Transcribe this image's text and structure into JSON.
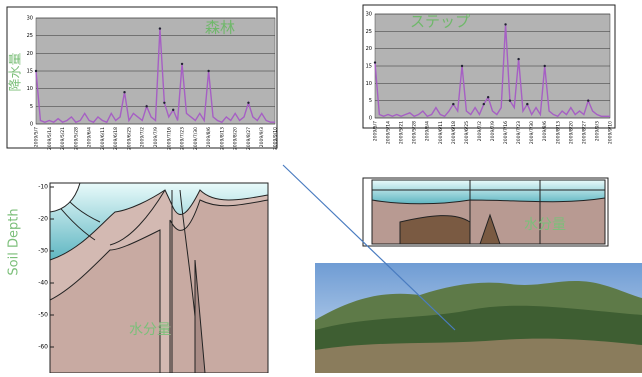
{
  "charts": {
    "precip_label": "降水量",
    "chart_data": [
      {
        "type": "line",
        "title": "森林",
        "color": "#a65fc4",
        "categories": [
          "2009/5/7",
          null,
          null,
          "2009/5/14",
          null,
          null,
          "2009/5/21",
          null,
          null,
          "2009/5/28",
          null,
          null,
          "2009/6/4",
          null,
          null,
          "2009/6/11",
          null,
          null,
          "2009/6/18",
          null,
          null,
          "2009/6/25",
          null,
          null,
          "2009/7/2",
          null,
          null,
          "2009/7/9",
          null,
          null,
          "2009/7/16",
          null,
          null,
          "2009/7/23",
          null,
          null,
          "2009/7/30",
          null,
          null,
          "2009/8/6",
          null,
          null,
          "2009/8/13",
          null,
          null,
          "2009/8/20",
          null,
          null,
          "2009/8/27",
          null,
          null,
          "2009/9/3",
          null,
          null,
          "2009/9/10"
        ],
        "values": [
          15,
          1,
          0.5,
          1,
          0.5,
          1.5,
          0.5,
          1,
          2,
          0.5,
          1,
          3,
          1,
          0.5,
          2,
          1,
          0.5,
          3,
          1,
          2,
          9,
          1,
          3,
          2,
          1,
          5,
          2,
          1,
          27,
          6,
          2,
          4,
          1,
          17,
          3,
          2,
          1,
          3,
          1,
          15,
          2,
          1,
          0.5,
          2,
          1,
          3,
          1,
          2,
          6,
          2,
          1,
          3,
          1,
          0.5,
          0.5
        ],
        "ylim": [
          0,
          30
        ],
        "yticks": [
          0,
          5,
          10,
          15,
          20,
          25,
          30
        ],
        "grid": true
      },
      {
        "type": "line",
        "title": "ステップ",
        "color": "#a65fc4",
        "categories": [
          "2009/5/7",
          null,
          null,
          "2009/5/14",
          null,
          null,
          "2009/5/21",
          null,
          null,
          "2009/5/28",
          null,
          null,
          "2009/6/4",
          null,
          null,
          "2009/6/11",
          null,
          null,
          "2009/6/18",
          null,
          null,
          "2009/6/25",
          null,
          null,
          "2009/7/2",
          null,
          null,
          "2009/7/9",
          null,
          null,
          "2009/7/16",
          null,
          null,
          "2009/7/23",
          null,
          null,
          "2009/7/30",
          null,
          null,
          "2009/8/6",
          null,
          null,
          "2009/8/13",
          null,
          null,
          "2009/8/20",
          null,
          null,
          "2009/8/27",
          null,
          null,
          "2009/9/3",
          null,
          null,
          "2009/9/10"
        ],
        "values": [
          16,
          1,
          0.5,
          1,
          0.5,
          1,
          0.5,
          1,
          1.5,
          0.5,
          1,
          2,
          0.5,
          1,
          3,
          1,
          0.5,
          2,
          4,
          2,
          15,
          2,
          1,
          3,
          1,
          4,
          6,
          2,
          1,
          3,
          27,
          5,
          3,
          17,
          2,
          4,
          1,
          3,
          1,
          15,
          2,
          1,
          0.5,
          2,
          1,
          3,
          1,
          2,
          1,
          5,
          2,
          1,
          0.5,
          0.5,
          0.5
        ],
        "ylim": [
          0,
          30
        ],
        "yticks": [
          0,
          5,
          10,
          15,
          20,
          25,
          30
        ],
        "grid": true
      }
    ],
    "soil_label": "Soil Depth",
    "soil_yticks": [
      -10,
      -20,
      -30,
      -40,
      -50,
      -60
    ],
    "moisture_left": "水分量",
    "moisture_right": "水分量"
  }
}
